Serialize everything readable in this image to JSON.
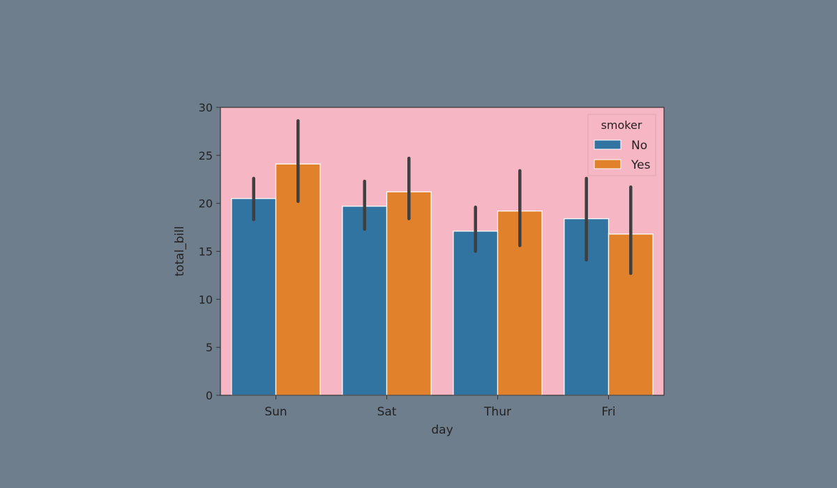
{
  "colors": {
    "background": "#6e7e8d",
    "plot_area": "#f7b6c3",
    "axes": "#333333",
    "text": "#222222",
    "error_bar": "#3f3f3f"
  },
  "chart_data": {
    "type": "bar",
    "title": "",
    "xlabel": "day",
    "ylabel": "total_bill",
    "categories": [
      "Sun",
      "Sat",
      "Thur",
      "Fri"
    ],
    "ylim": [
      0,
      30
    ],
    "yticks": [
      0,
      5,
      10,
      15,
      20,
      25,
      30
    ],
    "grid": false,
    "legend": {
      "title": "smoker",
      "placement": "top-right"
    },
    "series": [
      {
        "name": "No",
        "color": "#3274a1",
        "values": [
          20.5,
          19.7,
          17.1,
          18.4
        ],
        "ci_low": [
          18.3,
          17.3,
          15.0,
          14.1
        ],
        "ci_high": [
          22.6,
          22.3,
          19.6,
          22.6
        ]
      },
      {
        "name": "Yes",
        "color": "#e1812c",
        "values": [
          24.1,
          21.2,
          19.2,
          16.8
        ],
        "ci_low": [
          20.2,
          18.4,
          15.6,
          12.7
        ],
        "ci_high": [
          28.6,
          24.7,
          23.4,
          21.7
        ]
      }
    ]
  }
}
